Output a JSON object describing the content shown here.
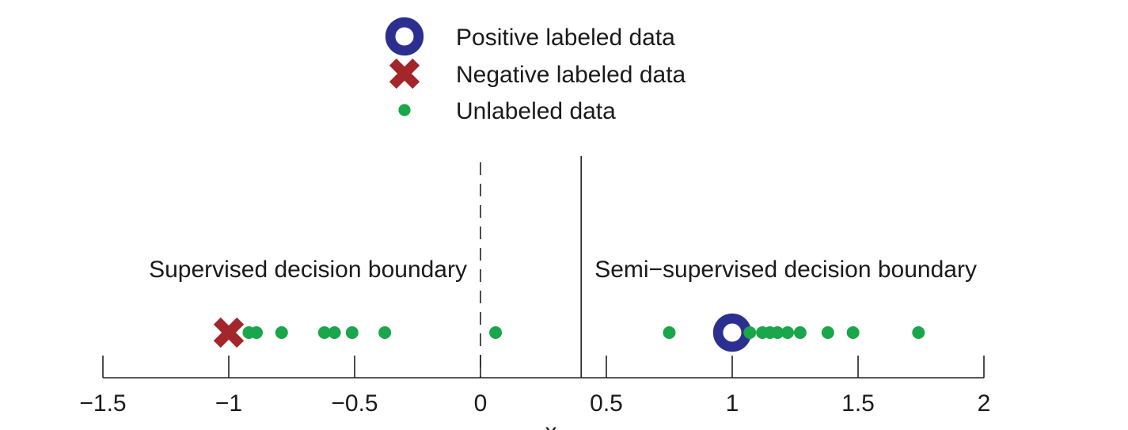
{
  "chart_data": {
    "type": "scatter",
    "xlabel": "x",
    "xlim": [
      -1.5,
      2
    ],
    "xticks": [
      -1.5,
      -1,
      -0.5,
      0,
      0.5,
      1,
      1.5,
      2
    ],
    "xtick_labels": [
      "−1.5",
      "−1",
      "−0.5",
      "0",
      "0.5",
      "1",
      "1.5",
      "2"
    ],
    "legend": {
      "placement": "top-center",
      "entries": [
        {
          "label": "Positive labeled data",
          "marker": "ring",
          "color": "#2b2f8f"
        },
        {
          "label": "Negative labeled data",
          "marker": "cross",
          "color": "#a3262a"
        },
        {
          "label": "Unlabeled data",
          "marker": "dot",
          "color": "#1aa64a"
        }
      ]
    },
    "series": [
      {
        "name": "Positive labeled data",
        "x": [
          1.0
        ],
        "color": "#2b2f8f"
      },
      {
        "name": "Negative labeled data",
        "x": [
          -1.0
        ],
        "color": "#a3262a"
      },
      {
        "name": "Unlabeled data",
        "color": "#1aa64a",
        "x": [
          -0.92,
          -0.89,
          -0.79,
          -0.62,
          -0.58,
          -0.51,
          -0.38,
          0.06,
          0.75,
          1.07,
          1.12,
          1.15,
          1.18,
          1.22,
          1.27,
          1.38,
          1.48,
          1.74
        ]
      }
    ],
    "boundaries": [
      {
        "label": "Supervised decision boundary",
        "x": 0.0,
        "style": "dashed",
        "label_side": "left"
      },
      {
        "label": "Semi−supervised decision boundary",
        "x": 0.4,
        "style": "solid",
        "label_side": "right"
      }
    ],
    "grid": false
  }
}
